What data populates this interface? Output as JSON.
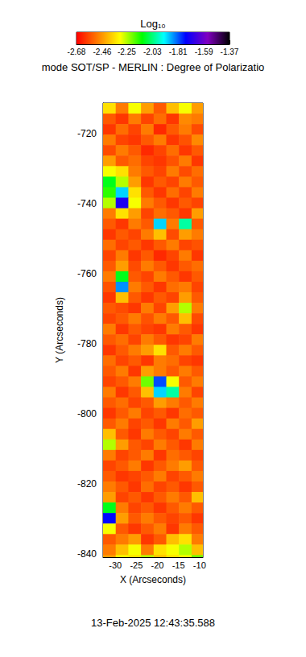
{
  "chart_data": {
    "type": "heatmap",
    "title": "mode SOT/SP - MERLIN : Degree of Polarizatio",
    "subtitle": "13-Feb-2025 12:43:35.588",
    "x_label": "X (Arcseconds)",
    "y_label": "Y (Arcseconds)",
    "xlim": [
      -32.9,
      -9.2
    ],
    "xticks": [
      -30,
      -25,
      -20,
      -15,
      -10
    ],
    "ylim": [
      -840.9,
      -711.3
    ],
    "yticks": [
      -840,
      -820,
      -800,
      -780,
      -760,
      -740,
      -720
    ],
    "colorbar": {
      "label": "Log₁₀",
      "range": [
        -2.68,
        -1.37
      ],
      "ticks": [
        -2.68,
        -2.46,
        -2.25,
        -2.03,
        -1.81,
        -1.59,
        -1.37
      ]
    },
    "x": [
      -31.4,
      -28.4,
      -25.4,
      -22.4,
      -19.4,
      -16.4,
      -13.4,
      -10.4
    ],
    "y": [
      -712.8,
      -715.8,
      -718.8,
      -721.8,
      -724.8,
      -727.8,
      -730.8,
      -733.8,
      -736.8,
      -739.8,
      -742.8,
      -745.8,
      -748.8,
      -751.8,
      -754.8,
      -757.8,
      -760.8,
      -763.8,
      -766.8,
      -769.8,
      -772.8,
      -775.8,
      -778.8,
      -781.8,
      -784.8,
      -787.8,
      -790.8,
      -793.8,
      -796.8,
      -799.8,
      -802.8,
      -805.8,
      -808.8,
      -811.8,
      -814.8,
      -817.8,
      -820.8,
      -823.8,
      -826.8,
      -829.8,
      -832.8,
      -835.8,
      -838.8,
      -841.8
    ],
    "values": [
      [
        -2.35,
        -2.5,
        -2.3,
        -2.45,
        -2.55,
        -2.4,
        -2.3,
        -2.45
      ],
      [
        -2.55,
        -2.6,
        -2.5,
        -2.58,
        -2.52,
        -2.6,
        -2.48,
        -2.5
      ],
      [
        -2.6,
        -2.52,
        -2.58,
        -2.5,
        -2.62,
        -2.55,
        -2.5,
        -2.57
      ],
      [
        -2.5,
        -2.58,
        -2.6,
        -2.55,
        -2.5,
        -2.6,
        -2.56,
        -2.48
      ],
      [
        -2.57,
        -2.5,
        -2.55,
        -2.62,
        -2.58,
        -2.52,
        -2.6,
        -2.55
      ],
      [
        -2.45,
        -2.55,
        -2.52,
        -2.58,
        -2.6,
        -2.56,
        -2.5,
        -2.6
      ],
      [
        -2.3,
        -2.35,
        -2.5,
        -2.55,
        -2.58,
        -2.5,
        -2.57,
        -2.52
      ],
      [
        -2.1,
        -2.25,
        -2.45,
        -2.6,
        -2.55,
        -2.58,
        -2.5,
        -2.55
      ],
      [
        -2.15,
        -1.9,
        -2.35,
        -2.55,
        -2.6,
        -2.52,
        -2.58,
        -2.5
      ],
      [
        -2.25,
        -1.7,
        -2.3,
        -2.5,
        -2.55,
        -2.6,
        -2.55,
        -2.58
      ],
      [
        -2.5,
        -2.35,
        -2.45,
        -2.58,
        -2.52,
        -2.55,
        -2.6,
        -2.45
      ],
      [
        -2.55,
        -2.6,
        -2.5,
        -2.55,
        -1.9,
        -2.5,
        -2.0,
        -2.55
      ],
      [
        -2.6,
        -2.55,
        -2.58,
        -2.5,
        -2.4,
        -2.57,
        -2.45,
        -2.5
      ],
      [
        -2.52,
        -2.58,
        -2.55,
        -2.6,
        -2.55,
        -2.5,
        -2.58,
        -2.56
      ],
      [
        -2.58,
        -2.5,
        -2.6,
        -2.55,
        -2.62,
        -2.58,
        -2.5,
        -2.6
      ],
      [
        -2.55,
        -2.45,
        -2.57,
        -2.5,
        -2.55,
        -2.6,
        -2.55,
        -2.52
      ],
      [
        -2.5,
        -2.1,
        -2.55,
        -2.58,
        -2.5,
        -2.55,
        -2.6,
        -2.55
      ],
      [
        -2.56,
        -1.85,
        -2.5,
        -2.55,
        -2.6,
        -2.52,
        -2.5,
        -2.58
      ],
      [
        -2.6,
        -2.4,
        -2.55,
        -2.6,
        -2.55,
        -2.58,
        -2.45,
        -2.55
      ],
      [
        -2.55,
        -2.57,
        -2.6,
        -2.5,
        -2.58,
        -2.45,
        -2.25,
        -2.5
      ],
      [
        -2.58,
        -2.55,
        -2.5,
        -2.56,
        -2.5,
        -2.55,
        -2.4,
        -2.57
      ],
      [
        -2.5,
        -2.6,
        -2.55,
        -2.58,
        -2.6,
        -2.5,
        -2.55,
        -2.6
      ],
      [
        -2.55,
        -2.52,
        -2.58,
        -2.5,
        -2.55,
        -2.6,
        -2.58,
        -2.5
      ],
      [
        -2.6,
        -2.55,
        -2.5,
        -2.45,
        -2.35,
        -2.55,
        -2.5,
        -2.55
      ],
      [
        -2.52,
        -2.58,
        -2.55,
        -2.6,
        -2.5,
        -2.52,
        -2.58,
        -2.6
      ],
      [
        -2.55,
        -2.5,
        -2.6,
        -2.45,
        -2.5,
        -2.55,
        -2.5,
        -2.55
      ],
      [
        -2.58,
        -2.55,
        -2.5,
        -2.2,
        -1.8,
        -2.3,
        -2.55,
        -2.5
      ],
      [
        -2.5,
        -2.6,
        -2.55,
        -2.4,
        -1.9,
        -2.0,
        -2.5,
        -2.58
      ],
      [
        -2.55,
        -2.52,
        -2.58,
        -2.55,
        -2.45,
        -2.5,
        -2.55,
        -2.5
      ],
      [
        -2.6,
        -2.55,
        -2.5,
        -2.58,
        -2.55,
        -2.6,
        -2.52,
        -2.55
      ],
      [
        -2.55,
        -2.5,
        -2.58,
        -2.55,
        -2.6,
        -2.5,
        -2.55,
        -2.45
      ],
      [
        -2.4,
        -2.55,
        -2.6,
        -2.5,
        -2.55,
        -2.58,
        -2.5,
        -2.55
      ],
      [
        -2.25,
        -2.45,
        -2.55,
        -2.58,
        -2.5,
        -2.55,
        -2.6,
        -2.5
      ],
      [
        -2.5,
        -2.58,
        -2.55,
        -2.5,
        -2.6,
        -2.52,
        -2.55,
        -2.58
      ],
      [
        -2.58,
        -2.55,
        -2.5,
        -2.6,
        -2.55,
        -2.5,
        -2.45,
        -2.55
      ],
      [
        -2.55,
        -2.6,
        -2.58,
        -2.55,
        -2.5,
        -2.58,
        -2.55,
        -2.5
      ],
      [
        -2.5,
        -2.55,
        -2.6,
        -2.52,
        -2.58,
        -2.55,
        -2.6,
        -2.55
      ],
      [
        -2.45,
        -2.58,
        -2.55,
        -2.6,
        -2.55,
        -2.5,
        -2.55,
        -2.4
      ],
      [
        -2.1,
        -2.5,
        -2.58,
        -2.55,
        -2.6,
        -2.55,
        -2.5,
        -2.55
      ],
      [
        -1.75,
        -2.45,
        -2.55,
        -2.5,
        -2.55,
        -2.58,
        -2.55,
        -2.6
      ],
      [
        -2.3,
        -2.55,
        -2.6,
        -2.55,
        -2.5,
        -2.6,
        -2.5,
        -2.55
      ],
      [
        -2.55,
        -2.5,
        -2.45,
        -2.6,
        -2.55,
        -2.4,
        -2.35,
        -2.5
      ],
      [
        -2.5,
        -2.4,
        -2.3,
        -2.5,
        -2.35,
        -2.3,
        -2.25,
        -2.4
      ],
      [
        -2.45,
        -2.3,
        -2.35,
        -2.25,
        -2.4,
        -2.35,
        -2.3,
        -2.2
      ]
    ]
  }
}
